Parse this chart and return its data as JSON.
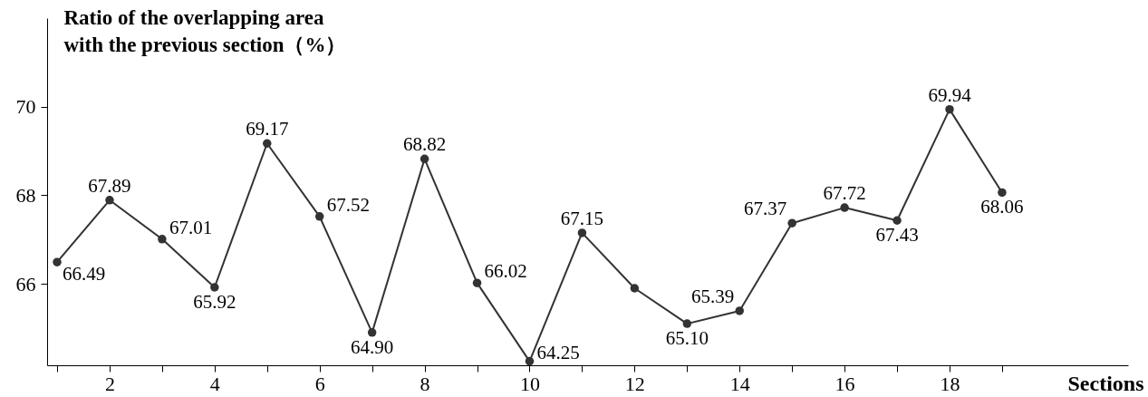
{
  "chart_data": {
    "type": "line",
    "ylabel": "Ratio of the overlapping area\nwith the previous section（%）",
    "xlabel": "Sections",
    "x": [
      1,
      2,
      3,
      4,
      5,
      6,
      7,
      8,
      9,
      10,
      11,
      12,
      13,
      14,
      15,
      16,
      17,
      18,
      19
    ],
    "series": [
      {
        "color": "#333333",
        "values": [
          66.49,
          67.89,
          67.01,
          65.92,
          69.17,
          67.52,
          64.9,
          68.82,
          66.02,
          64.25,
          67.15,
          65.9,
          65.1,
          65.39,
          67.37,
          67.72,
          67.43,
          69.94,
          68.06
        ],
        "value_labels": [
          "66.49",
          "67.89",
          "67.01",
          "65.92",
          "69.17",
          "67.52",
          "64.90",
          "68.82",
          "66.02",
          "64.25",
          "67.15",
          null,
          "65.10",
          "65.39",
          "67.37",
          "67.72",
          "67.43",
          "69.94",
          "68.06"
        ]
      }
    ],
    "xlim": [
      0.81,
      21.4
    ],
    "xticks": [
      {
        "value": 1,
        "label": null
      },
      2,
      {
        "value": 3,
        "label": null
      },
      4,
      {
        "value": 5,
        "label": null
      },
      6,
      {
        "value": 7,
        "label": null
      },
      8,
      {
        "value": 9,
        "label": null
      },
      10,
      {
        "value": 11,
        "label": null
      },
      12,
      {
        "value": 13,
        "label": null
      },
      14,
      {
        "value": 15,
        "label": null
      },
      16,
      {
        "value": 17,
        "label": null
      },
      18,
      {
        "value": 19,
        "label": null
      }
    ],
    "ylim": [
      64.16,
      72
    ],
    "yticks": [
      66,
      68,
      70
    ],
    "marker": "circle",
    "line_style": "solid",
    "grid": false
  }
}
